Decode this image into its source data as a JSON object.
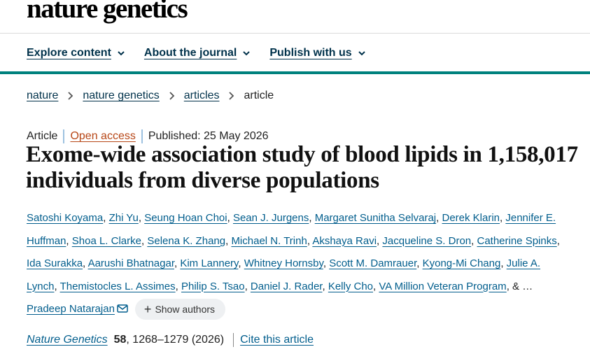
{
  "site": {
    "logo_text": "nature genetics"
  },
  "nav": {
    "items": [
      {
        "label": "Explore content"
      },
      {
        "label": "About the journal"
      },
      {
        "label": "Publish with us"
      }
    ]
  },
  "breadcrumb": {
    "items": [
      "nature",
      "nature genetics",
      "articles"
    ],
    "current": "article"
  },
  "article": {
    "type": "Article",
    "access": "Open access",
    "published": "Published: 25 May 2026",
    "title": "Exome-wide association study of blood lipids in 1,158,017 individuals from diverse populations",
    "authors": [
      "Satoshi Koyama",
      "Zhi Yu",
      "Seung Hoan Choi",
      "Sean J. Jurgens",
      "Margaret Sunitha Selvaraj",
      "Derek Klarin",
      "Jennifer E. Huffman",
      "Shoa L. Clarke",
      "Selena K. Zhang",
      "Michael N. Trinh",
      "Akshaya Ravi",
      "Jacqueline S. Dron",
      "Catherine Spinks",
      "Ida Surakka",
      "Aarushi Bhatnagar",
      "Kim Lannery",
      "Whitney Hornsby",
      "Scott M. Damrauer",
      "Kyong-Mi Chang",
      "Julie A. Lynch",
      "Themistocles L. Assimes",
      "Philip S. Tsao",
      "Daniel J. Rader",
      "Kelly Cho",
      "VA Million Veteran Program"
    ],
    "ellipsis": "& …",
    "last_author": "Pradeep Natarajan",
    "show_authors_label": "Show authors",
    "citation": {
      "journal": "Nature Genetics",
      "volume": "58",
      "pages_year": ", 1268–1279 (2026)",
      "cite_label": "Cite this article"
    }
  },
  "colors": {
    "link": "#025e8d",
    "nav_text": "#01324b",
    "accent_bar": "#00817d",
    "open_access": "#b74616"
  }
}
